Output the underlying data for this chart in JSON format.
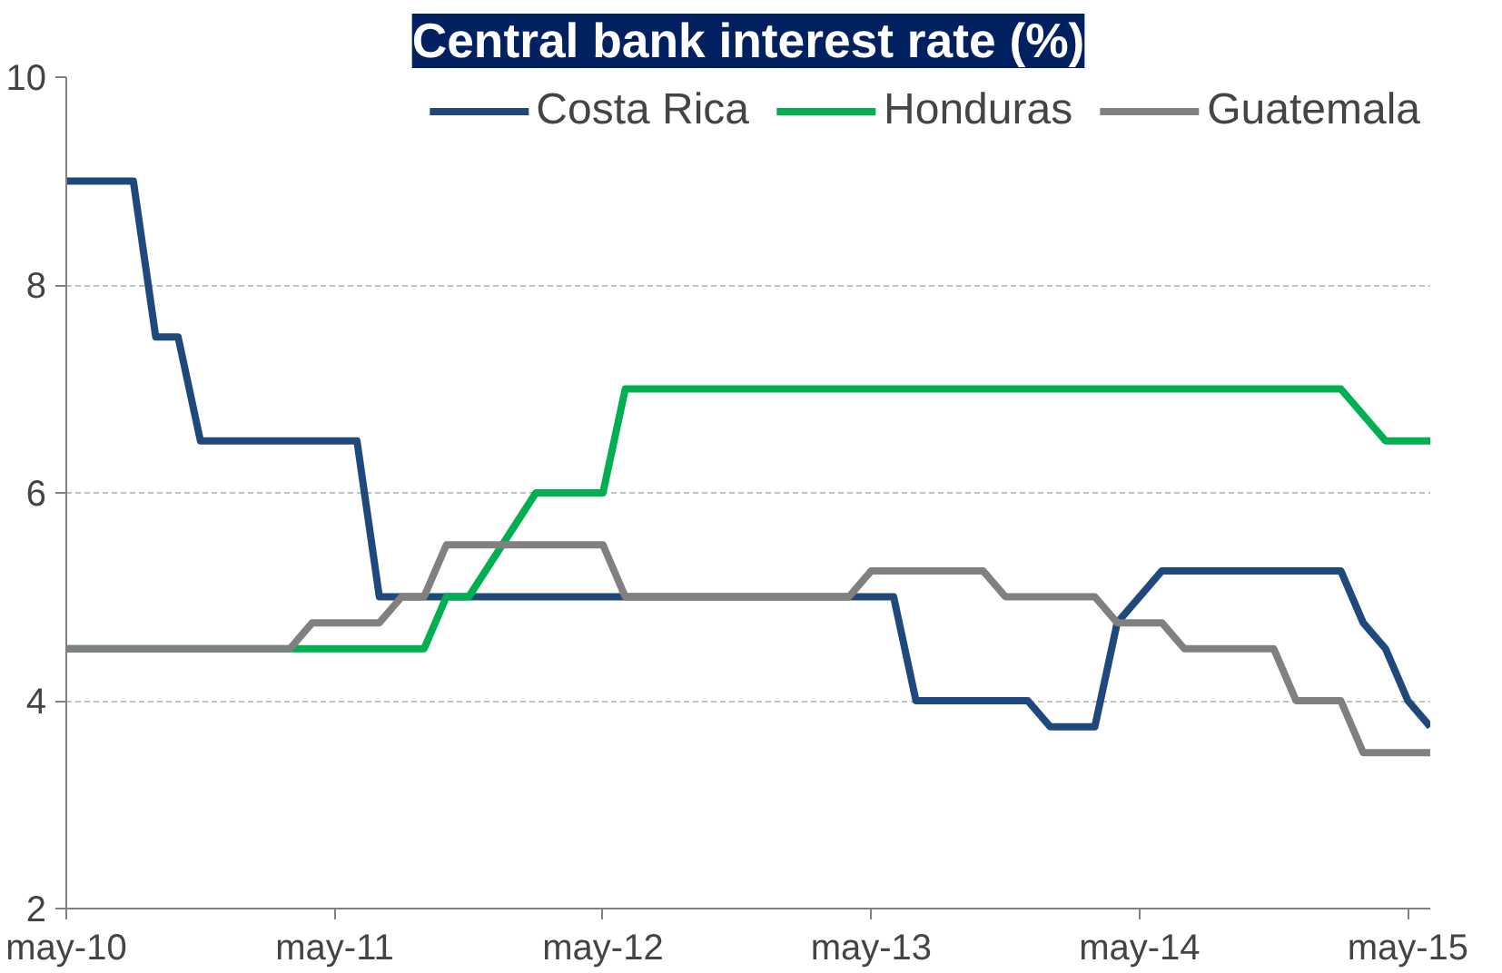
{
  "chart_data": {
    "type": "line",
    "title": "Central bank interest rate (%)",
    "xlim": [
      "2010-05",
      "2015-06"
    ],
    "xticks": [
      {
        "value": "2010-05",
        "label": "may-10"
      },
      {
        "value": "2011-05",
        "label": "may-11"
      },
      {
        "value": "2012-05",
        "label": "may-12"
      },
      {
        "value": "2013-05",
        "label": "may-13"
      },
      {
        "value": "2014-05",
        "label": "may-14"
      },
      {
        "value": "2015-05",
        "label": "may-15"
      }
    ],
    "ylim": [
      2,
      10
    ],
    "yticks": [
      2,
      4,
      6,
      8,
      10
    ],
    "grid": "y",
    "legend": "top",
    "line_style": "solid",
    "series": [
      {
        "name": "Costa Rica",
        "color": "#1f497d",
        "x": [
          "2010-05",
          "2010-08",
          "2010-09",
          "2010-10",
          "2010-11",
          "2011-06",
          "2011-07",
          "2013-06",
          "2013-07",
          "2013-12",
          "2014-01",
          "2014-03",
          "2014-04",
          "2014-06",
          "2015-02",
          "2015-03",
          "2015-04",
          "2015-05",
          "2015-06"
        ],
        "values": [
          9,
          9,
          7.5,
          7.5,
          6.5,
          6.5,
          5,
          5,
          4,
          4,
          3.75,
          3.75,
          4.75,
          5.25,
          5.25,
          4.75,
          4.5,
          4,
          3.75
        ]
      },
      {
        "name": "Honduras",
        "color": "#00b050",
        "x": [
          "2010-05",
          "2011-03",
          "2011-09",
          "2011-10",
          "2011-11",
          "2012-02",
          "2012-05",
          "2012-06",
          "2015-02",
          "2015-04",
          "2015-06"
        ],
        "values": [
          4.5,
          4.5,
          4.5,
          5,
          5,
          6,
          6,
          7,
          7,
          6.5,
          6.5
        ]
      },
      {
        "name": "Guatemala",
        "color": "#808080",
        "x": [
          "2010-05",
          "2011-03",
          "2011-04",
          "2011-07",
          "2011-08",
          "2011-09",
          "2011-10",
          "2012-05",
          "2012-06",
          "2013-04",
          "2013-05",
          "2013-10",
          "2013-11",
          "2014-03",
          "2014-04",
          "2014-06",
          "2014-07",
          "2014-11",
          "2014-12",
          "2015-02",
          "2015-03",
          "2015-06"
        ],
        "values": [
          4.5,
          4.5,
          4.75,
          4.75,
          5,
          5,
          5.5,
          5.5,
          5,
          5,
          5.25,
          5.25,
          5,
          5,
          4.75,
          4.75,
          4.5,
          4.5,
          4,
          4,
          3.5,
          3.5
        ]
      }
    ]
  }
}
